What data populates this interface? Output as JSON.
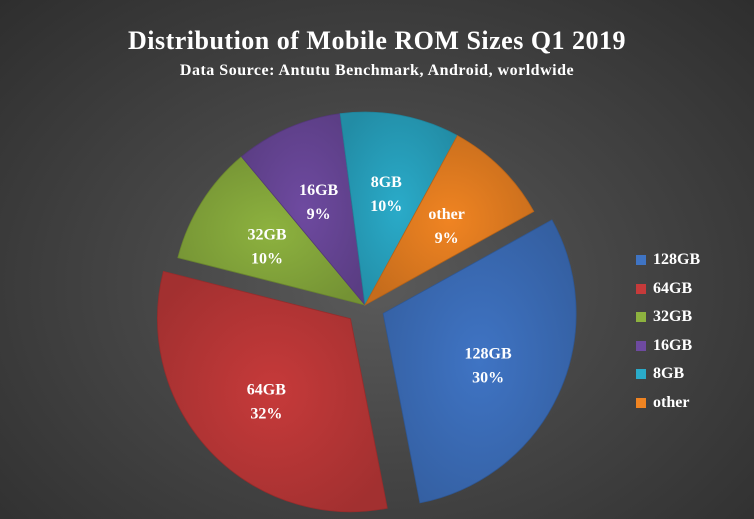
{
  "chart_data": {
    "type": "pie",
    "title": "Distribution of Mobile ROM Sizes Q1 2019",
    "subtitle": "Data Source: Antutu Benchmark, Android, worldwide",
    "categories": [
      "128GB",
      "64GB",
      "32GB",
      "16GB",
      "8GB",
      "other"
    ],
    "values": [
      30,
      32,
      10,
      9,
      10,
      9
    ],
    "value_labels": [
      "30%",
      "32%",
      "10%",
      "9%",
      "10%",
      "9%"
    ],
    "colors": [
      "#3f74c4",
      "#c63a3a",
      "#8db23f",
      "#6e4aa0",
      "#2aabc9",
      "#f08422"
    ],
    "exploded": [
      "128GB",
      "64GB"
    ],
    "legend_position": "right"
  }
}
